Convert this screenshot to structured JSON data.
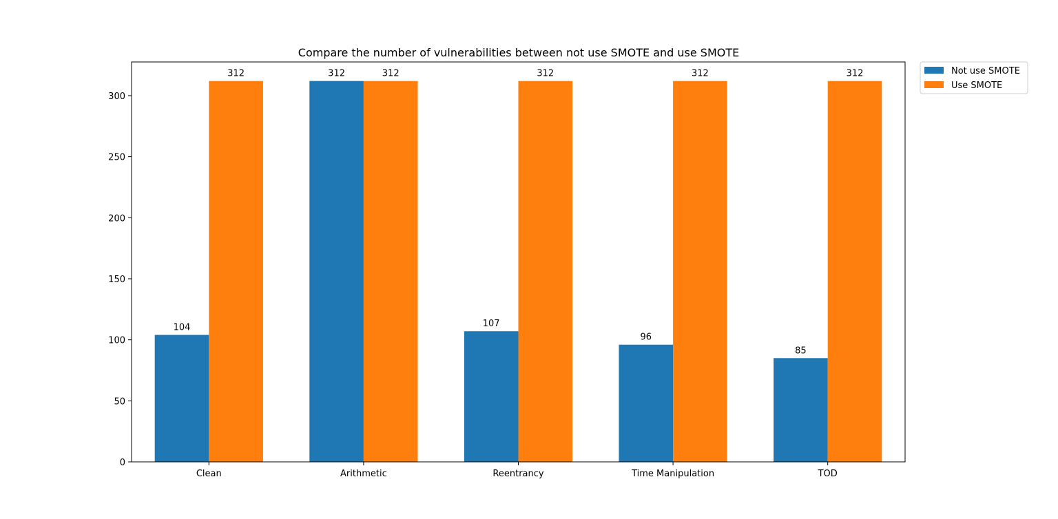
{
  "chart_data": {
    "type": "bar",
    "title": "Compare the number of vulnerabilities between not use SMOTE and use SMOTE",
    "xlabel": "",
    "ylabel": "",
    "categories": [
      "Clean",
      "Arithmetic",
      "Reentrancy",
      "Time Manipulation",
      "TOD"
    ],
    "series": [
      {
        "name": "Not use SMOTE",
        "color": "#1f77b4",
        "values": [
          104,
          312,
          107,
          96,
          85
        ]
      },
      {
        "name": "Use SMOTE",
        "color": "#ff7f0e",
        "values": [
          312,
          312,
          312,
          312,
          312
        ]
      }
    ],
    "ylim": [
      0,
      327.6
    ],
    "yticks": [
      0,
      50,
      100,
      150,
      200,
      250,
      300
    ],
    "grid": false,
    "legend_position": "outside-top-right",
    "bar_labels": true
  }
}
